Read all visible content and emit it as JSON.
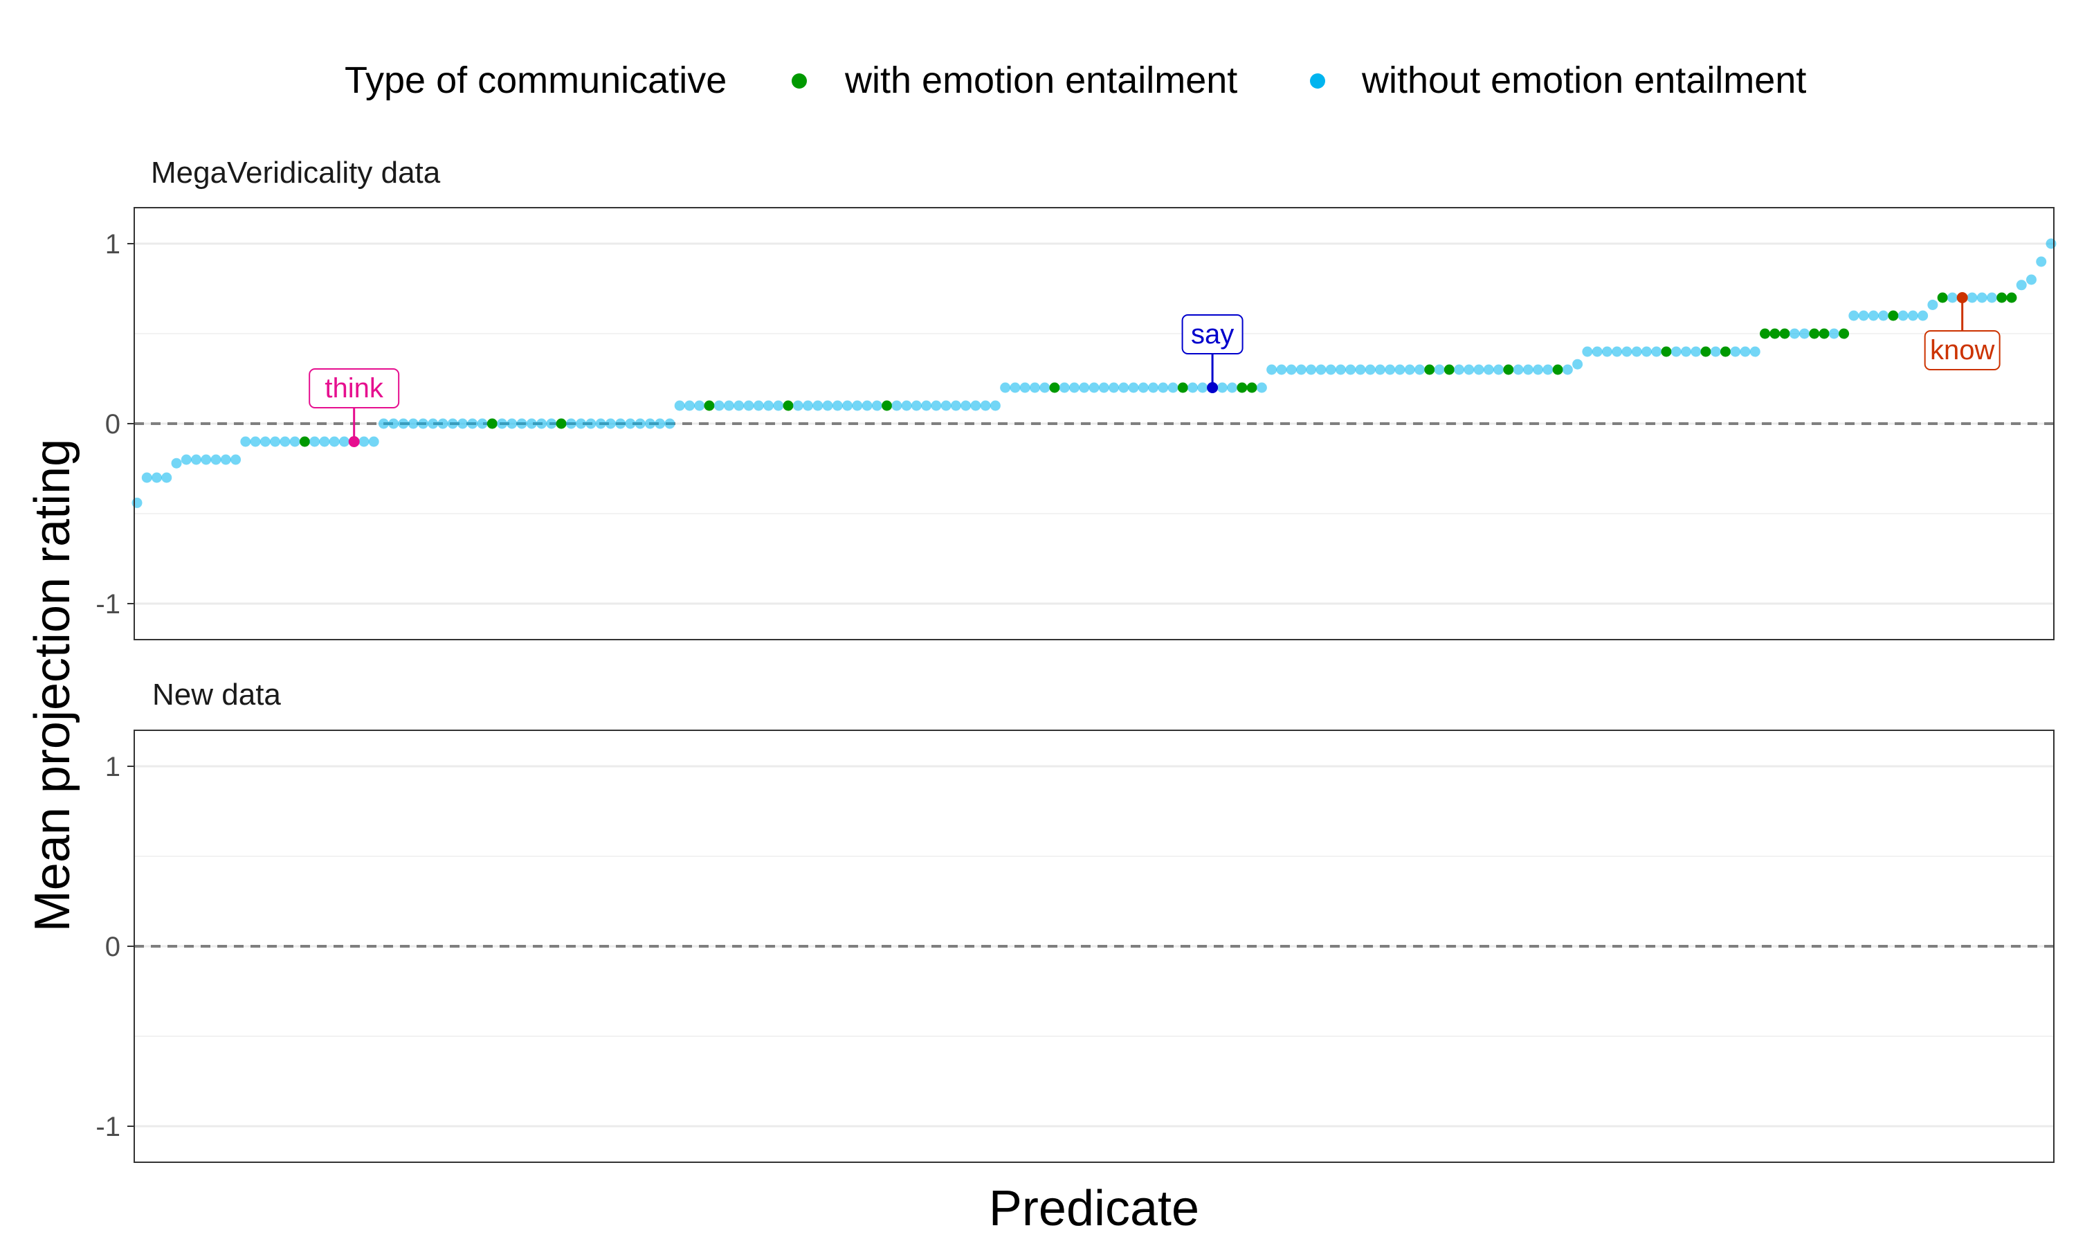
{
  "chart_data": {
    "type": "scatter",
    "xlabel": "Predicate",
    "ylabel": "Mean projection rating",
    "ylim": [
      -1.2,
      1.2
    ],
    "yticks": [
      1,
      0,
      -1
    ],
    "ytick_labels": [
      "1",
      "0",
      "-1"
    ],
    "grid": true,
    "reference_line_y": 0,
    "legend": {
      "position": "top",
      "title": "Type of communicative",
      "entries": [
        {
          "label": "with emotion entailment",
          "color": "#009900"
        },
        {
          "label": "without emotion entailment",
          "color": "#00b4ef"
        }
      ]
    },
    "facets": [
      {
        "title": "MegaVeridicality data",
        "groups": [
          {
            "y": -0.44,
            "n": 1
          },
          {
            "y": -0.3,
            "n": 3
          },
          {
            "y": -0.22,
            "n": 1
          },
          {
            "y": -0.2,
            "n": 6
          },
          {
            "y": -0.1,
            "n": 14,
            "emotion": [
              6
            ],
            "special": [
              {
                "i": 11,
                "label": "think",
                "color": "#e60f8f"
              }
            ]
          },
          {
            "y": 0.0,
            "n": 30,
            "emotion": [
              11,
              18
            ]
          },
          {
            "y": 0.1,
            "n": 33,
            "emotion": [
              3,
              11,
              21
            ]
          },
          {
            "y": 0.2,
            "n": 27,
            "emotion": [
              5,
              18,
              24,
              25
            ],
            "special": [
              {
                "i": 21,
                "label": "say",
                "color": "#0000cc"
              }
            ]
          },
          {
            "y": 0.3,
            "n": 31,
            "emotion": [
              16,
              18,
              24,
              29
            ]
          },
          {
            "y": 0.33,
            "n": 1
          },
          {
            "y": 0.4,
            "n": 18,
            "emotion": [
              8,
              12,
              14
            ]
          },
          {
            "y": 0.5,
            "n": 9,
            "emotion": [
              0,
              1,
              2,
              5,
              6,
              8
            ]
          },
          {
            "y": 0.6,
            "n": 8,
            "emotion": [
              4
            ]
          },
          {
            "y": 0.66,
            "n": 1
          },
          {
            "y": 0.7,
            "n": 8,
            "emotion": [
              0,
              6,
              7
            ],
            "special": [
              {
                "i": 2,
                "label": "know",
                "color": "#cc3300"
              }
            ]
          },
          {
            "y": 0.77,
            "n": 1
          },
          {
            "y": 0.8,
            "n": 1
          },
          {
            "y": 0.9,
            "n": 1
          },
          {
            "y": 1.0,
            "n": 1
          }
        ]
      },
      {
        "title": "New data",
        "groups": []
      }
    ]
  }
}
